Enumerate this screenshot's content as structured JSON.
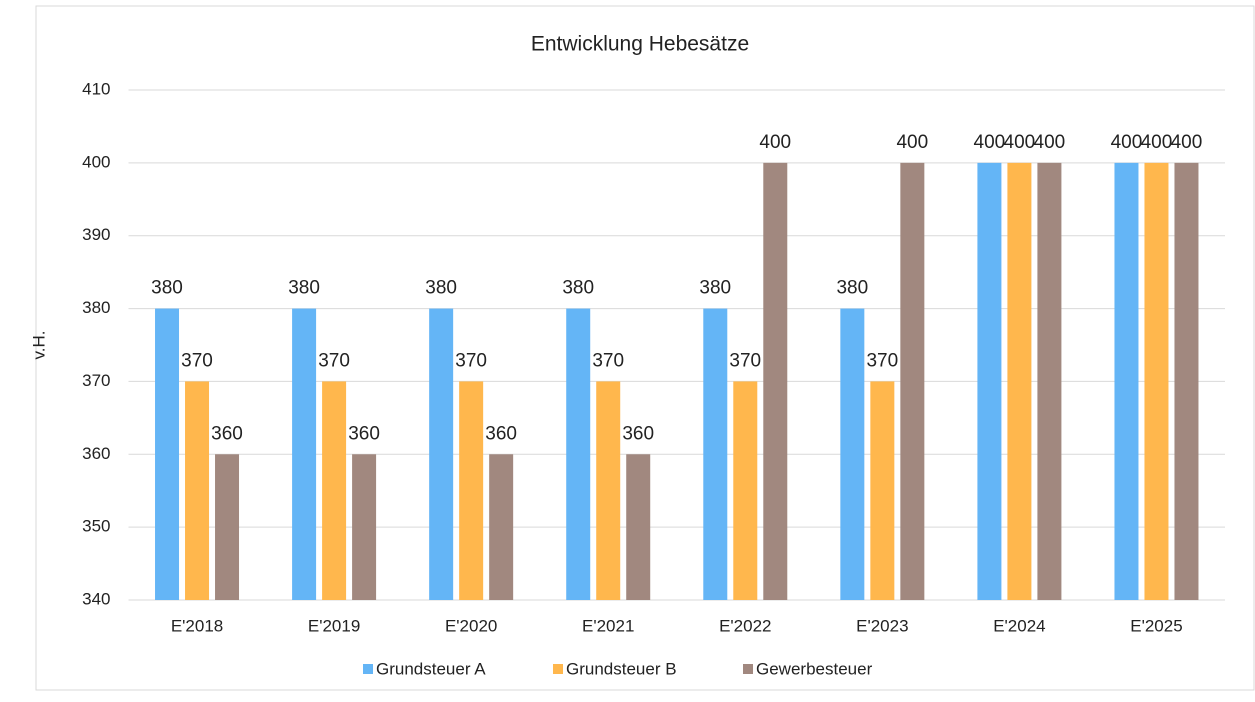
{
  "chart_data": {
    "type": "bar",
    "title": "Entwicklung Hebesätze",
    "y_label": "v.H.",
    "categories": [
      "E'2018",
      "E'2019",
      "E'2020",
      "E'2021",
      "E'2022",
      "E'2023",
      "E'2024",
      "E'2025"
    ],
    "series": [
      {
        "name": "Grundsteuer A",
        "color": "#64b5f6",
        "values": [
          380,
          380,
          380,
          380,
          380,
          380,
          400,
          400
        ]
      },
      {
        "name": "Grundsteuer B",
        "color": "#ffb74d",
        "values": [
          370,
          370,
          370,
          370,
          370,
          370,
          400,
          400
        ]
      },
      {
        "name": "Gewerbesteuer",
        "color": "#a1887f",
        "values": [
          360,
          360,
          360,
          360,
          400,
          400,
          400,
          400
        ]
      }
    ],
    "ylim": [
      340,
      410
    ],
    "yticks": [
      340,
      350,
      360,
      370,
      380,
      390,
      400,
      410
    ],
    "grid": true,
    "legend": "bottom"
  }
}
